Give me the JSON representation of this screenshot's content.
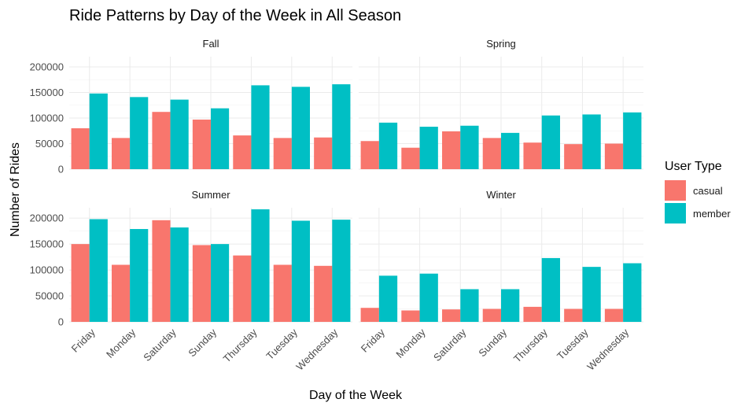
{
  "chart_data": {
    "type": "bar",
    "title": "Ride Patterns by Day of the Week in All Season",
    "xlabel": "Day of the Week",
    "ylabel": "Number of Rides",
    "ylim": [
      0,
      220000
    ],
    "yticks": [
      0,
      50000,
      100000,
      150000,
      200000
    ],
    "grid": true,
    "legend": {
      "title": "User Type",
      "position": "right",
      "entries": [
        {
          "name": "casual",
          "color": "#F8766D"
        },
        {
          "name": "member",
          "color": "#00BFC4"
        }
      ]
    },
    "categories": [
      "Friday",
      "Monday",
      "Saturday",
      "Sunday",
      "Thursday",
      "Tuesday",
      "Wednesday"
    ],
    "facets": [
      {
        "name": "Fall",
        "series": [
          {
            "name": "casual",
            "values": [
              80000,
              61000,
              112000,
              97000,
              66000,
              61000,
              62000
            ]
          },
          {
            "name": "member",
            "values": [
              148000,
              141000,
              136000,
              119000,
              164000,
              161000,
              166000
            ]
          }
        ]
      },
      {
        "name": "Spring",
        "series": [
          {
            "name": "casual",
            "values": [
              55000,
              42000,
              74000,
              61000,
              52000,
              49000,
              50000
            ]
          },
          {
            "name": "member",
            "values": [
              91000,
              83000,
              85000,
              71000,
              105000,
              107000,
              111000
            ]
          }
        ]
      },
      {
        "name": "Summer",
        "series": [
          {
            "name": "casual",
            "values": [
              150000,
              110000,
              196000,
              148000,
              128000,
              110000,
              108000
            ]
          },
          {
            "name": "member",
            "values": [
              198000,
              179000,
              182000,
              150000,
              217000,
              195000,
              197000
            ]
          }
        ]
      },
      {
        "name": "Winter",
        "series": [
          {
            "name": "casual",
            "values": [
              27000,
              22000,
              24000,
              25000,
              29000,
              25000,
              25000
            ]
          },
          {
            "name": "member",
            "values": [
              89000,
              93000,
              63000,
              63000,
              123000,
              106000,
              113000
            ]
          }
        ]
      }
    ]
  }
}
